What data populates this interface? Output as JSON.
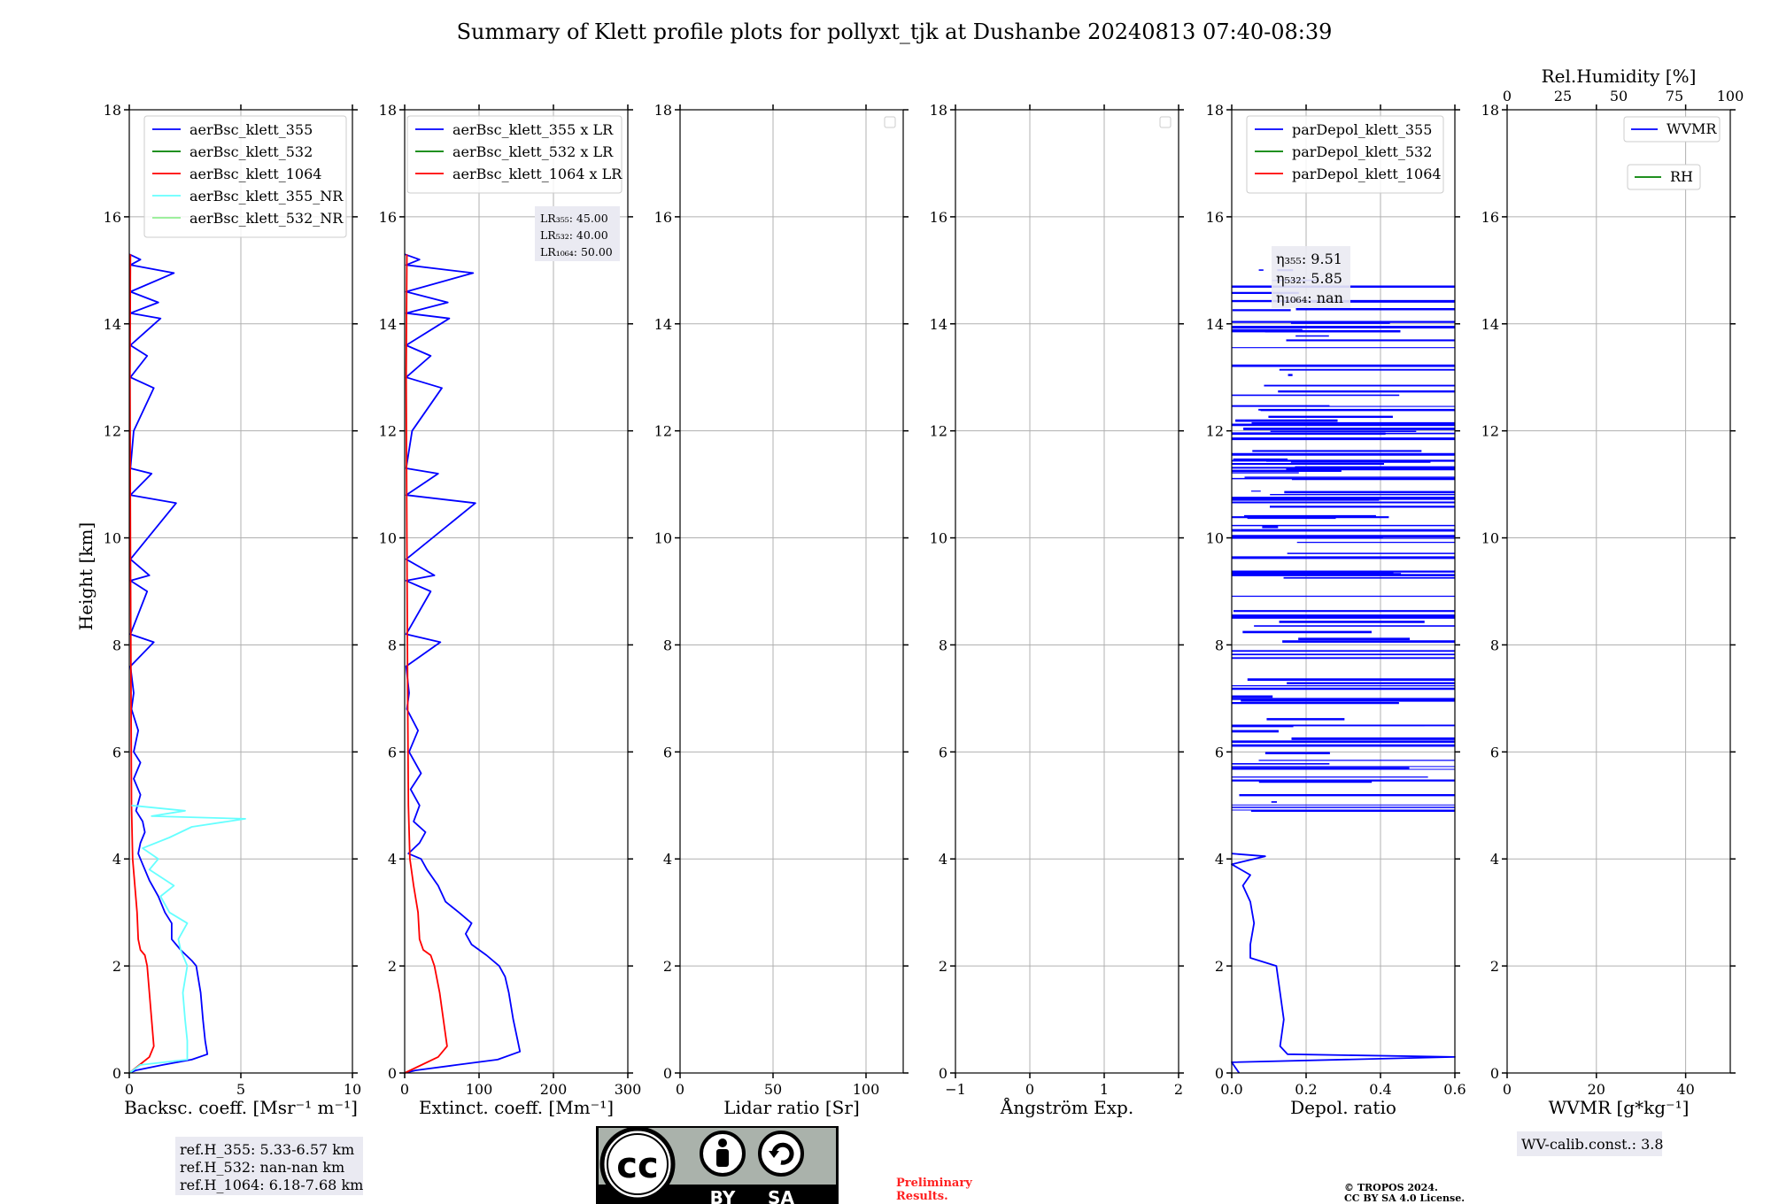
{
  "title": "Summary of Klett profile plots for pollyxt_tjk at Dushanbe 20240813 07:40-08:39",
  "shared_ylabel": "Height [km]",
  "y_ticks": [
    "0",
    "2",
    "4",
    "6",
    "8",
    "10",
    "12",
    "14",
    "16",
    "18"
  ],
  "chart_data": [
    {
      "id": "backscatter",
      "type": "line",
      "xlabel": "Backsc. coeff. [Msr⁻¹ m⁻¹]",
      "xlim": [
        0,
        10
      ],
      "ylim": [
        0,
        18
      ],
      "x_ticks": [
        "0",
        "5",
        "10"
      ],
      "grid": true,
      "legend_position": "top-center",
      "series": [
        {
          "name": "aerBsc_klett_355",
          "color": "#0000ff",
          "points": [
            [
              0.0,
              0.0
            ],
            [
              0.3,
              0.05
            ],
            [
              1.5,
              0.15
            ],
            [
              2.8,
              0.25
            ],
            [
              3.5,
              0.35
            ],
            [
              3.4,
              0.6
            ],
            [
              3.3,
              1.0
            ],
            [
              3.2,
              1.5
            ],
            [
              3.0,
              2.0
            ],
            [
              2.8,
              2.1
            ],
            [
              2.3,
              2.3
            ],
            [
              1.9,
              2.5
            ],
            [
              1.9,
              2.8
            ],
            [
              1.6,
              3.0
            ],
            [
              1.3,
              3.3
            ],
            [
              0.9,
              3.6
            ],
            [
              0.6,
              3.9
            ],
            [
              0.4,
              4.1
            ],
            [
              0.5,
              4.3
            ],
            [
              0.7,
              4.5
            ],
            [
              0.6,
              4.7
            ],
            [
              0.3,
              4.9
            ],
            [
              0.5,
              5.2
            ],
            [
              0.2,
              5.5
            ],
            [
              0.5,
              5.8
            ],
            [
              0.2,
              6.0
            ],
            [
              0.4,
              6.4
            ],
            [
              0.1,
              6.8
            ],
            [
              0.2,
              7.1
            ],
            [
              0.05,
              7.6
            ],
            [
              1.1,
              8.05
            ],
            [
              0.05,
              8.2
            ],
            [
              0.8,
              9.0
            ],
            [
              0.05,
              9.2
            ],
            [
              0.9,
              9.3
            ],
            [
              0.05,
              9.6
            ],
            [
              2.1,
              10.65
            ],
            [
              0.05,
              10.8
            ],
            [
              1.0,
              11.2
            ],
            [
              0.05,
              11.3
            ],
            [
              0.2,
              12.0
            ],
            [
              1.1,
              12.8
            ],
            [
              0.05,
              13.0
            ],
            [
              0.8,
              13.4
            ],
            [
              0.05,
              13.6
            ],
            [
              1.4,
              14.1
            ],
            [
              0.05,
              14.2
            ],
            [
              1.3,
              14.4
            ],
            [
              0.05,
              14.6
            ],
            [
              2.0,
              14.95
            ],
            [
              0.05,
              15.1
            ],
            [
              0.5,
              15.2
            ],
            [
              0.0,
              15.3
            ]
          ]
        },
        {
          "name": "aerBsc_klett_532",
          "color": "#008000",
          "points": []
        },
        {
          "name": "aerBsc_klett_1064",
          "color": "#ff0000",
          "points": [
            [
              0.0,
              0.0
            ],
            [
              0.3,
              0.1
            ],
            [
              0.9,
              0.3
            ],
            [
              1.1,
              0.5
            ],
            [
              1.0,
              1.0
            ],
            [
              0.9,
              1.5
            ],
            [
              0.8,
              2.0
            ],
            [
              0.7,
              2.2
            ],
            [
              0.5,
              2.3
            ],
            [
              0.4,
              2.5
            ],
            [
              0.35,
              3.0
            ],
            [
              0.25,
              3.5
            ],
            [
              0.15,
              4.0
            ],
            [
              0.1,
              5.0
            ],
            [
              0.08,
              7.0
            ],
            [
              0.05,
              10.0
            ],
            [
              0.03,
              13.0
            ],
            [
              0.05,
              15.3
            ]
          ]
        },
        {
          "name": "aerBsc_klett_355_NR",
          "color": "#66ffff",
          "points": [
            [
              0.0,
              0.0
            ],
            [
              0.5,
              0.15
            ],
            [
              2.6,
              0.25
            ],
            [
              2.6,
              0.6
            ],
            [
              2.5,
              1.0
            ],
            [
              2.4,
              1.5
            ],
            [
              2.6,
              2.0
            ],
            [
              2.3,
              2.3
            ],
            [
              2.2,
              2.5
            ],
            [
              2.6,
              2.8
            ],
            [
              1.8,
              3.0
            ],
            [
              1.4,
              3.3
            ],
            [
              2.0,
              3.5
            ],
            [
              0.9,
              3.8
            ],
            [
              1.3,
              4.0
            ],
            [
              0.6,
              4.2
            ],
            [
              1.8,
              4.4
            ],
            [
              2.8,
              4.6
            ],
            [
              5.2,
              4.75
            ],
            [
              1.0,
              4.8
            ],
            [
              2.5,
              4.9
            ],
            [
              0.1,
              5.0
            ]
          ]
        },
        {
          "name": "aerBsc_klett_532_NR",
          "color": "#90ee90",
          "points": []
        }
      ],
      "ref_box": [
        "ref.H_355: 5.33-6.57 km",
        "ref.H_532: nan-nan km",
        "ref.H_1064: 6.18-7.68 km"
      ]
    },
    {
      "id": "extinction",
      "type": "line",
      "xlabel": "Extinct. coeff. [Mm⁻¹]",
      "xlim": [
        0,
        300
      ],
      "ylim": [
        0,
        18
      ],
      "x_ticks": [
        "0",
        "100",
        "200",
        "300"
      ],
      "grid": true,
      "legend_position": "top-right",
      "series": [
        {
          "name": "aerBsc_klett_355 x LR",
          "color": "#0000ff",
          "points": [
            [
              0,
              0
            ],
            [
              15,
              0.05
            ],
            [
              70,
              0.15
            ],
            [
              125,
              0.25
            ],
            [
              155,
              0.4
            ],
            [
              152,
              0.6
            ],
            [
              146,
              1.0
            ],
            [
              140,
              1.5
            ],
            [
              135,
              1.8
            ],
            [
              127,
              2.0
            ],
            [
              110,
              2.2
            ],
            [
              90,
              2.4
            ],
            [
              82,
              2.6
            ],
            [
              90,
              2.8
            ],
            [
              73,
              3.0
            ],
            [
              55,
              3.2
            ],
            [
              45,
              3.5
            ],
            [
              30,
              3.8
            ],
            [
              22,
              4.0
            ],
            [
              5,
              4.1
            ],
            [
              20,
              4.3
            ],
            [
              28,
              4.5
            ],
            [
              12,
              4.7
            ],
            [
              20,
              5.0
            ],
            [
              8,
              5.3
            ],
            [
              22,
              5.6
            ],
            [
              6,
              6.0
            ],
            [
              18,
              6.4
            ],
            [
              3,
              6.8
            ],
            [
              6,
              7.1
            ],
            [
              2,
              7.6
            ],
            [
              48,
              8.05
            ],
            [
              2,
              8.2
            ],
            [
              35,
              9.0
            ],
            [
              2,
              9.2
            ],
            [
              40,
              9.3
            ],
            [
              2,
              9.6
            ],
            [
              95,
              10.65
            ],
            [
              2,
              10.8
            ],
            [
              45,
              11.2
            ],
            [
              2,
              11.3
            ],
            [
              10,
              12.0
            ],
            [
              50,
              12.8
            ],
            [
              2,
              13.0
            ],
            [
              35,
              13.4
            ],
            [
              2,
              13.6
            ],
            [
              60,
              14.1
            ],
            [
              2,
              14.2
            ],
            [
              58,
              14.4
            ],
            [
              2,
              14.6
            ],
            [
              92,
              14.95
            ],
            [
              2,
              15.1
            ],
            [
              20,
              15.2
            ],
            [
              0,
              15.3
            ]
          ]
        },
        {
          "name": "aerBsc_klett_532 x LR",
          "color": "#008000",
          "points": []
        },
        {
          "name": "aerBsc_klett_1064 x LR",
          "color": "#ff0000",
          "points": [
            [
              0,
              0
            ],
            [
              15,
              0.1
            ],
            [
              45,
              0.3
            ],
            [
              57,
              0.5
            ],
            [
              52,
              1.0
            ],
            [
              47,
              1.5
            ],
            [
              40,
              2.0
            ],
            [
              35,
              2.2
            ],
            [
              25,
              2.3
            ],
            [
              20,
              2.5
            ],
            [
              18,
              3.0
            ],
            [
              12,
              3.5
            ],
            [
              7,
              4.0
            ],
            [
              5,
              5.0
            ],
            [
              4,
              7.0
            ],
            [
              3,
              10.0
            ],
            [
              2,
              13.0
            ],
            [
              3,
              15.3
            ]
          ]
        }
      ],
      "lr_box": [
        "LR₃₅₅: 45.00",
        "LR₅₃₂: 40.00",
        "LR₁₀₆₄: 50.00"
      ]
    },
    {
      "id": "lidar_ratio",
      "type": "line",
      "xlabel": "Lidar ratio [Sr]",
      "xlim": [
        0,
        120
      ],
      "ylim": [
        0,
        18
      ],
      "x_ticks": [
        "0",
        "50",
        "100"
      ],
      "grid": true,
      "series": []
    },
    {
      "id": "angstrom",
      "type": "line",
      "xlabel": "Ångström Exp.",
      "xlim": [
        -1,
        2
      ],
      "ylim": [
        0,
        18
      ],
      "x_ticks": [
        "−1",
        "0",
        "1",
        "2"
      ],
      "grid": true,
      "series": []
    },
    {
      "id": "depol",
      "type": "line",
      "xlabel": "Depol. ratio",
      "xlim": [
        0,
        0.6
      ],
      "ylim": [
        0,
        18
      ],
      "x_ticks": [
        "0.0",
        "0.2",
        "0.4",
        "0.6"
      ],
      "grid": true,
      "legend_position": "top-center",
      "series": [
        {
          "name": "parDepol_klett_355",
          "color": "#0000ff",
          "points": [
            [
              0.02,
              0.0
            ],
            [
              0.01,
              0.1
            ],
            [
              0.0,
              0.2
            ],
            [
              0.6,
              0.3
            ],
            [
              0.15,
              0.35
            ],
            [
              0.13,
              0.5
            ],
            [
              0.14,
              1.0
            ],
            [
              0.13,
              1.5
            ],
            [
              0.12,
              2.0
            ],
            [
              0.05,
              2.15
            ],
            [
              0.05,
              2.4
            ],
            [
              0.06,
              2.8
            ],
            [
              0.05,
              3.2
            ],
            [
              0.03,
              3.5
            ],
            [
              0.05,
              3.7
            ],
            [
              0.0,
              3.9
            ],
            [
              0.09,
              4.05
            ],
            [
              0.0,
              4.1
            ]
          ]
        },
        {
          "name": "parDepol_klett_532",
          "color": "#008000",
          "points": []
        },
        {
          "name": "parDepol_klett_1064",
          "color": "#ff0000",
          "points": []
        }
      ],
      "noise_band": {
        "from_km": 4.9,
        "to_km": 15.2,
        "stripes": 130
      },
      "eta_box": [
        "η₃₅₅: 9.51",
        "η₅₃₂: 5.85",
        "η₁₀₆₄: nan"
      ]
    },
    {
      "id": "wvmr",
      "type": "line",
      "xlabel": "WVMR [g*kg⁻¹]",
      "xlim": [
        0,
        50
      ],
      "ylim": [
        0,
        18
      ],
      "x_ticks": [
        "0",
        "20",
        "40"
      ],
      "top_xlabel": "Rel.Humidity [%]",
      "top_x_ticks": [
        "0",
        "25",
        "50",
        "75",
        "100"
      ],
      "grid": true,
      "series": [
        {
          "name": "WVMR",
          "color": "#0000ff",
          "points": []
        },
        {
          "name": "RH",
          "color": "#008000",
          "points": []
        }
      ],
      "calib_box": "WV-calib.const.: 3.8"
    }
  ],
  "license": {
    "cc_text": "cc",
    "by_text": "BY",
    "sa_text": "SA",
    "preliminary": [
      "Preliminary",
      "Results."
    ],
    "copyright": [
      "© TROPOS 2024.",
      "CC BY SA 4.0 License."
    ]
  }
}
